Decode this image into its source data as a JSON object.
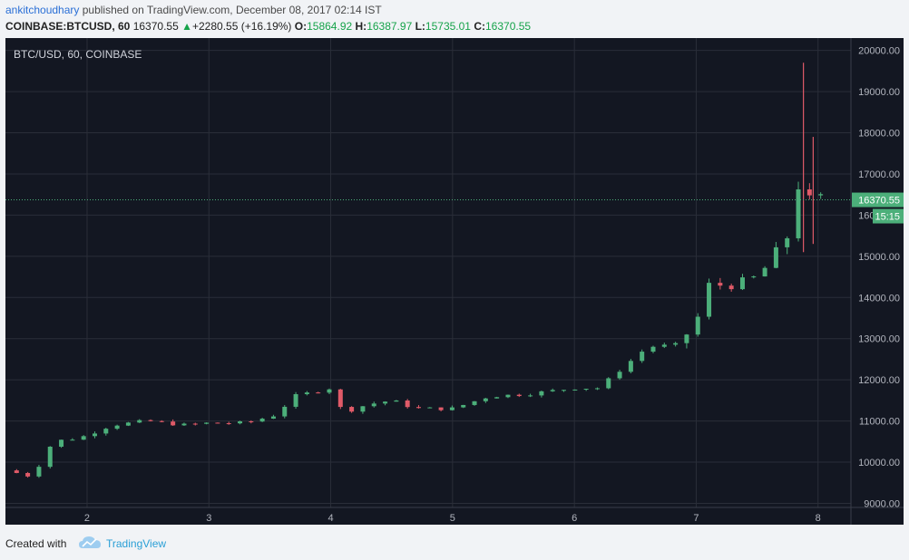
{
  "header": {
    "author": "ankitchoudhary",
    "published": " published on TradingView.com, December 08, 2017 02:14 IST",
    "symbol": "COINBASE:BTCUSD, 60",
    "price": "16370.55",
    "change": "+2280.55 (+16.19%)",
    "o_label": "O:",
    "o_value": "15864.92",
    "h_label": "H:",
    "h_value": "16387.97",
    "l_label": "L:",
    "l_value": "15735.01",
    "c_label": "C:",
    "c_value": "16370.55"
  },
  "footer": {
    "created": "Created with",
    "brand": "TradingView"
  },
  "chart_data": {
    "type": "candlestick",
    "title": "BTC/USD, 60, COINBASE",
    "ylim": [
      8900,
      20300
    ],
    "yticks": [
      9000,
      10000,
      11000,
      12000,
      13000,
      14000,
      15000,
      16000,
      17000,
      18000,
      19000,
      20000
    ],
    "ytick_labels": [
      "9000.00",
      "10000.00",
      "11000.00",
      "12000.00",
      "13000.00",
      "14000.00",
      "15000.00",
      "16000.00",
      "17000.00",
      "18000.00",
      "19000.00",
      "20000.00"
    ],
    "xlim": [
      1.33,
      8.27
    ],
    "xticks": [
      2,
      3,
      4,
      5,
      6,
      7,
      8
    ],
    "xtick_labels": [
      "2",
      "3",
      "4",
      "5",
      "6",
      "7",
      "8"
    ],
    "last_price": 16370.55,
    "last_price_label": "16370.55",
    "countdown": "15:15",
    "colors": {
      "up": "#4caf7a",
      "down": "#e05a68",
      "background": "#131722",
      "grid": "#2a2e39"
    },
    "anchors": [
      [
        1.33,
        9800
      ],
      [
        1.55,
        9650
      ],
      [
        1.72,
        10500
      ],
      [
        1.95,
        10600
      ],
      [
        2.2,
        10900
      ],
      [
        2.5,
        11000
      ],
      [
        2.8,
        10900
      ],
      [
        3.0,
        10950
      ],
      [
        3.3,
        10950
      ],
      [
        3.55,
        11150
      ],
      [
        3.7,
        11600
      ],
      [
        4.0,
        11800
      ],
      [
        4.1,
        11200
      ],
      [
        4.3,
        11400
      ],
      [
        4.5,
        11500
      ],
      [
        4.7,
        11300
      ],
      [
        5.0,
        11300
      ],
      [
        5.3,
        11600
      ],
      [
        5.6,
        11650
      ],
      [
        6.0,
        11800
      ],
      [
        6.2,
        11800
      ],
      [
        6.4,
        12300
      ],
      [
        6.6,
        12800
      ],
      [
        6.85,
        12850
      ],
      [
        7.0,
        13400
      ],
      [
        7.1,
        14300
      ],
      [
        7.3,
        14300
      ],
      [
        7.5,
        14500
      ],
      [
        7.65,
        15000
      ],
      [
        7.75,
        15500
      ],
      [
        7.85,
        16900
      ],
      [
        7.92,
        16300
      ],
      [
        8.0,
        16370
      ]
    ],
    "spikes": [
      {
        "x": 7.88,
        "high": 19700,
        "low": 15100
      },
      {
        "x": 7.96,
        "high": 17900,
        "low": 15300
      }
    ]
  }
}
